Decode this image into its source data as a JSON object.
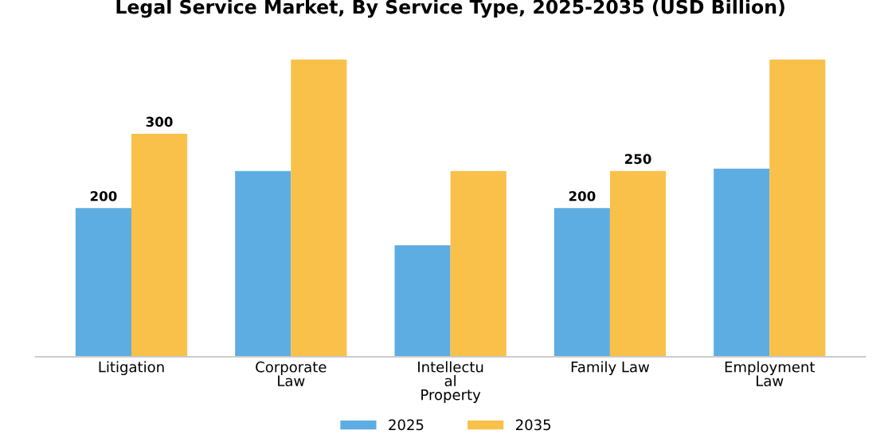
{
  "chart_data": {
    "type": "bar",
    "title": "Legal Service Market, By Service Type, 2025-2035 (USD Billion)",
    "categories": [
      "Litigation",
      "Corporate\nLaw",
      "Intellectu\nal\nProperty",
      "Family Law",
      "Employment\nLaw"
    ],
    "series": [
      {
        "name": "2025",
        "color": "#5dade2",
        "values": [
          200,
          250,
          150,
          200,
          253
        ],
        "value_labels": [
          "200",
          null,
          null,
          "200",
          null
        ]
      },
      {
        "name": "2035",
        "color": "#f9c04a",
        "values": [
          300,
          400,
          250,
          250,
          400
        ],
        "value_labels": [
          "300",
          null,
          null,
          "250",
          null
        ]
      }
    ],
    "legend": "bottom",
    "grid": false
  }
}
